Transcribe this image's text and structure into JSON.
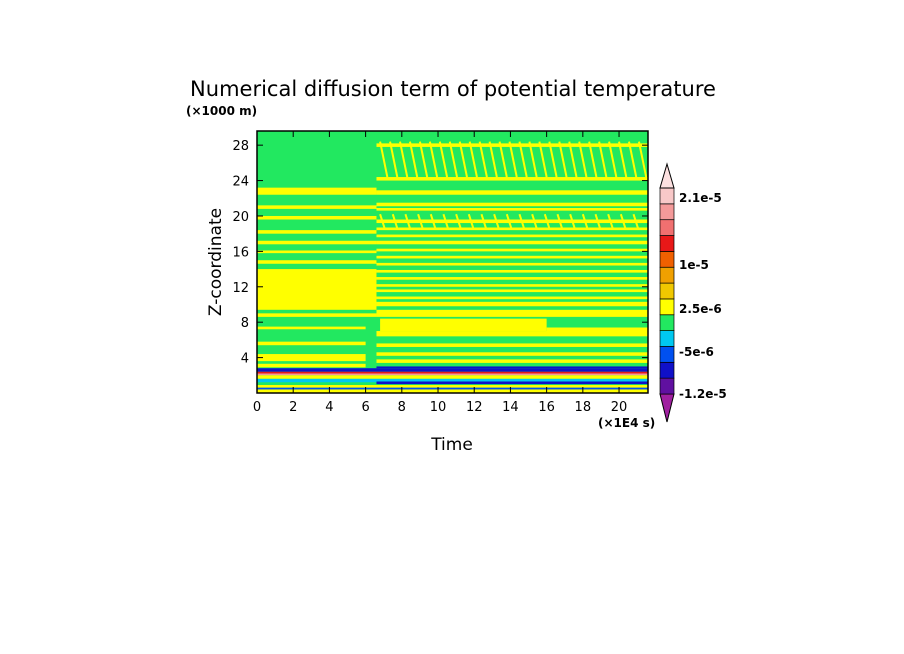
{
  "chart_data": {
    "type": "heatmap",
    "title": "Numerical diffusion term of potential temperature",
    "xlabel": "Time",
    "ylabel": "Z-coordinate",
    "x_unit_label": "(×1E4 s)",
    "y_unit_label": "(×1000 m)",
    "xlim": [
      0,
      21.6
    ],
    "ylim": [
      0,
      29.6
    ],
    "x_ticks": [
      0,
      2,
      4,
      6,
      8,
      10,
      12,
      14,
      16,
      18,
      20
    ],
    "y_ticks": [
      4,
      8,
      12,
      16,
      20,
      24,
      28
    ],
    "colorbar": {
      "colors": [
        "#a020a0",
        "#6010a0",
        "#1010c8",
        "#0050f0",
        "#00c8f0",
        "#22e860",
        "#ffff00",
        "#f0c800",
        "#f0a000",
        "#f06000",
        "#e81818",
        "#f07070",
        "#f49a9a",
        "#f8c8c8",
        "#fce0e0"
      ],
      "labels": [
        "-1.2e-5",
        "-5e-6",
        "2.5e-6",
        "1e-5",
        "2.1e-5"
      ]
    },
    "regions": [
      {
        "x": [
          0,
          21.6
        ],
        "y": [
          0,
          29.6
        ],
        "value": "2.5e-6 to 1e-5 (green)"
      },
      {
        "x": [
          0,
          6.6
        ],
        "y": [
          9.4,
          14.0
        ],
        "value": "> 2.5e-6 (yellow)"
      },
      {
        "x": [
          0,
          21.6
        ],
        "y": [
          0.2,
          3.0
        ],
        "value": "mixed -1.2e-5 to 2.1e-5"
      }
    ]
  }
}
